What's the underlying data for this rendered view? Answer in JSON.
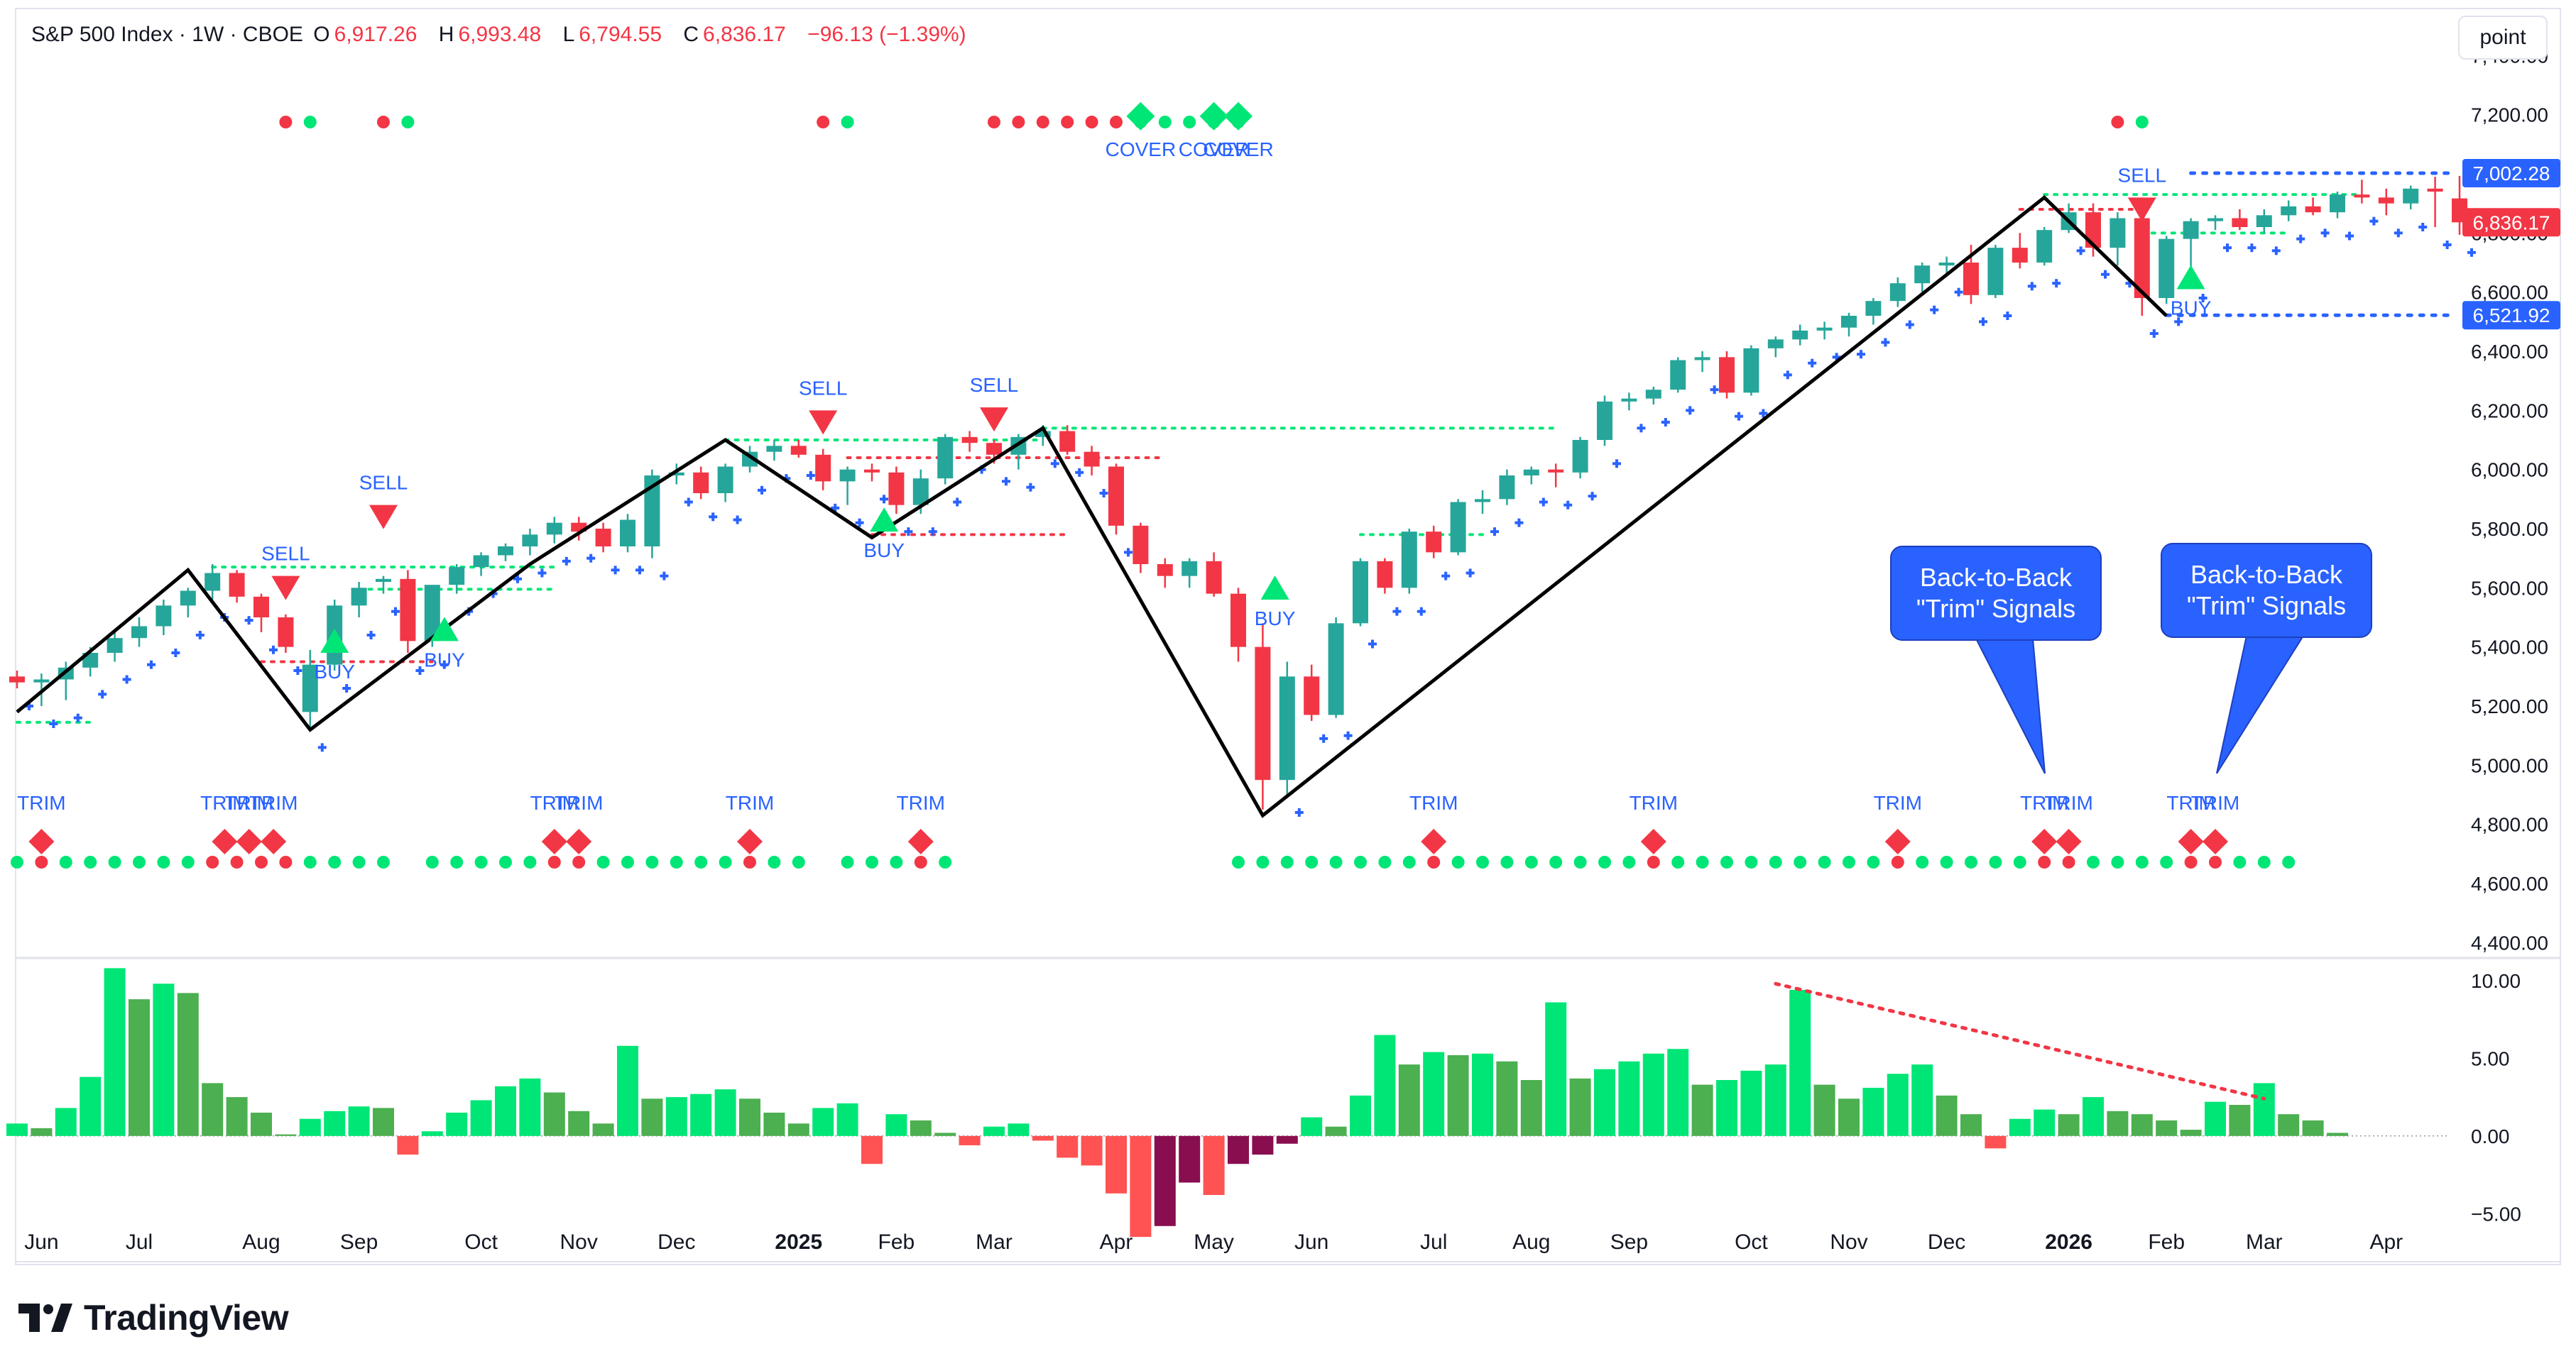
{
  "header": {
    "symbol": "S&P 500 Index · 1W · CBOE",
    "open_label": "O",
    "open": "6,917.26",
    "high_label": "H",
    "high": "6,993.48",
    "low_label": "L",
    "low": "6,794.55",
    "close_label": "C",
    "close": "6,836.17",
    "change": "−96.13 (−1.39%)"
  },
  "unit_button": "point",
  "brand": "TradingView",
  "colors": {
    "up": "#26a69a",
    "down": "#f23645",
    "hist_up_strong": "#00e676",
    "hist_up_weak": "#4caf50",
    "hist_down_strong": "#ff5252",
    "hist_down_weak": "#880e4f",
    "signal_blue": "#2962ff",
    "green_dot": "#00e676"
  },
  "chart_data": {
    "type": "candlestick",
    "price_axis": {
      "ticks": [
        "4,400.00",
        "4,600.00",
        "4,800.00",
        "5,000.00",
        "5,200.00",
        "5,400.00",
        "5,600.00",
        "5,800.00",
        "6,000.00",
        "6,200.00",
        "6,400.00",
        "6,600.00",
        "6,800.00",
        "7,000.00",
        "7,200.00",
        "7,400.00"
      ],
      "ylim": [
        4360,
        7420
      ]
    },
    "price_labels": [
      {
        "text": "7,002.28",
        "value": 7002.28,
        "color": "#2962ff"
      },
      {
        "text": "6,836.17",
        "value": 6836.17,
        "color": "#f23645"
      },
      {
        "text": "6,521.92",
        "value": 6521.92,
        "color": "#2962ff"
      }
    ],
    "time_axis": [
      {
        "label": "Jun",
        "week": 1
      },
      {
        "label": "Jul",
        "week": 5
      },
      {
        "label": "Aug",
        "week": 10
      },
      {
        "label": "Sep",
        "week": 14
      },
      {
        "label": "Oct",
        "week": 19
      },
      {
        "label": "Nov",
        "week": 23
      },
      {
        "label": "Dec",
        "week": 27
      },
      {
        "label": "2025",
        "week": 32,
        "bold": true
      },
      {
        "label": "Feb",
        "week": 36
      },
      {
        "label": "Mar",
        "week": 40
      },
      {
        "label": "Apr",
        "week": 45
      },
      {
        "label": "May",
        "week": 49
      },
      {
        "label": "Jun",
        "week": 53
      },
      {
        "label": "Jul",
        "week": 58
      },
      {
        "label": "Aug",
        "week": 62
      },
      {
        "label": "Sep",
        "week": 66
      },
      {
        "label": "Oct",
        "week": 71
      },
      {
        "label": "Nov",
        "week": 75
      },
      {
        "label": "Dec",
        "week": 79
      },
      {
        "label": "2026",
        "week": 84,
        "bold": true
      },
      {
        "label": "Feb",
        "week": 88
      },
      {
        "label": "Mar",
        "week": 92
      },
      {
        "label": "Apr",
        "week": 97
      }
    ],
    "candles": [
      [
        5300,
        5320,
        5260,
        5280
      ],
      [
        5280,
        5310,
        5200,
        5290
      ],
      [
        5290,
        5350,
        5220,
        5330
      ],
      [
        5330,
        5400,
        5300,
        5380
      ],
      [
        5380,
        5460,
        5350,
        5430
      ],
      [
        5430,
        5500,
        5400,
        5470
      ],
      [
        5470,
        5560,
        5440,
        5540
      ],
      [
        5540,
        5600,
        5500,
        5590
      ],
      [
        5590,
        5680,
        5560,
        5650
      ],
      [
        5650,
        5660,
        5550,
        5570
      ],
      [
        5570,
        5580,
        5450,
        5500
      ],
      [
        5500,
        5510,
        5380,
        5400
      ],
      [
        5180,
        5390,
        5120,
        5340
      ],
      [
        5340,
        5560,
        5320,
        5540
      ],
      [
        5540,
        5620,
        5500,
        5600
      ],
      [
        5620,
        5640,
        5580,
        5630
      ],
      [
        5630,
        5660,
        5380,
        5420
      ],
      [
        5420,
        5600,
        5400,
        5610
      ],
      [
        5610,
        5680,
        5580,
        5670
      ],
      [
        5670,
        5720,
        5640,
        5710
      ],
      [
        5710,
        5750,
        5690,
        5740
      ],
      [
        5740,
        5800,
        5710,
        5780
      ],
      [
        5780,
        5840,
        5750,
        5820
      ],
      [
        5820,
        5840,
        5760,
        5790
      ],
      [
        5800,
        5820,
        5720,
        5740
      ],
      [
        5740,
        5850,
        5720,
        5830
      ],
      [
        5740,
        6000,
        5700,
        5980
      ],
      [
        5980,
        6020,
        5950,
        5990
      ],
      [
        5990,
        6010,
        5900,
        5920
      ],
      [
        5920,
        6020,
        5890,
        6010
      ],
      [
        6010,
        6080,
        5990,
        6060
      ],
      [
        6060,
        6100,
        6030,
        6080
      ],
      [
        6080,
        6100,
        6040,
        6050
      ],
      [
        6050,
        6070,
        5930,
        5960
      ],
      [
        5960,
        6010,
        5880,
        6000
      ],
      [
        6000,
        6020,
        5960,
        5990
      ],
      [
        5990,
        6010,
        5850,
        5880
      ],
      [
        5880,
        6000,
        5850,
        5970
      ],
      [
        5970,
        6120,
        5950,
        6110
      ],
      [
        6110,
        6130,
        6060,
        6090
      ],
      [
        6090,
        6100,
        6020,
        6050
      ],
      [
        6050,
        6120,
        6000,
        6110
      ],
      [
        6110,
        6150,
        6080,
        6130
      ],
      [
        6130,
        6150,
        6050,
        6060
      ],
      [
        6060,
        6080,
        5980,
        6010
      ],
      [
        6010,
        6020,
        5780,
        5810
      ],
      [
        5810,
        5820,
        5650,
        5680
      ],
      [
        5680,
        5700,
        5600,
        5640
      ],
      [
        5640,
        5700,
        5600,
        5690
      ],
      [
        5690,
        5720,
        5570,
        5580
      ],
      [
        5580,
        5600,
        5350,
        5400
      ],
      [
        5400,
        5480,
        4850,
        4950
      ],
      [
        4950,
        5350,
        4900,
        5300
      ],
      [
        5300,
        5340,
        5150,
        5170
      ],
      [
        5170,
        5500,
        5160,
        5480
      ],
      [
        5480,
        5700,
        5470,
        5690
      ],
      [
        5690,
        5700,
        5580,
        5600
      ],
      [
        5600,
        5800,
        5580,
        5790
      ],
      [
        5790,
        5810,
        5700,
        5720
      ],
      [
        5720,
        5900,
        5710,
        5890
      ],
      [
        5890,
        5930,
        5850,
        5900
      ],
      [
        5900,
        6000,
        5880,
        5980
      ],
      [
        5980,
        6010,
        5950,
        6000
      ],
      [
        6000,
        6020,
        5940,
        5990
      ],
      [
        5990,
        6110,
        5970,
        6100
      ],
      [
        6100,
        6250,
        6080,
        6230
      ],
      [
        6230,
        6260,
        6200,
        6240
      ],
      [
        6240,
        6280,
        6220,
        6270
      ],
      [
        6270,
        6380,
        6260,
        6370
      ],
      [
        6370,
        6400,
        6330,
        6380
      ],
      [
        6380,
        6400,
        6240,
        6260
      ],
      [
        6260,
        6420,
        6250,
        6410
      ],
      [
        6410,
        6450,
        6380,
        6440
      ],
      [
        6440,
        6490,
        6420,
        6470
      ],
      [
        6470,
        6500,
        6440,
        6480
      ],
      [
        6480,
        6530,
        6450,
        6520
      ],
      [
        6520,
        6580,
        6490,
        6570
      ],
      [
        6570,
        6650,
        6550,
        6630
      ],
      [
        6630,
        6700,
        6600,
        6690
      ],
      [
        6690,
        6720,
        6660,
        6700
      ],
      [
        6700,
        6760,
        6560,
        6590
      ],
      [
        6590,
        6760,
        6580,
        6750
      ],
      [
        6750,
        6800,
        6680,
        6700
      ],
      [
        6700,
        6820,
        6690,
        6810
      ],
      [
        6810,
        6900,
        6800,
        6870
      ],
      [
        6870,
        6900,
        6720,
        6750
      ],
      [
        6750,
        6870,
        6690,
        6850
      ],
      [
        6850,
        6870,
        6520,
        6580
      ],
      [
        6580,
        6790,
        6560,
        6780
      ],
      [
        6780,
        6850,
        6640,
        6840
      ],
      [
        6840,
        6860,
        6810,
        6850
      ],
      [
        6850,
        6880,
        6810,
        6820
      ],
      [
        6820,
        6880,
        6800,
        6860
      ],
      [
        6860,
        6910,
        6840,
        6890
      ],
      [
        6890,
        6920,
        6860,
        6870
      ],
      [
        6870,
        6940,
        6850,
        6930
      ],
      [
        6930,
        6980,
        6900,
        6920
      ],
      [
        6920,
        6950,
        6860,
        6900
      ],
      [
        6900,
        6960,
        6880,
        6950
      ],
      [
        6950,
        6990,
        6820,
        6940
      ],
      [
        6917,
        6993,
        6794,
        6836
      ]
    ],
    "zigzag": [
      [
        0,
        5180
      ],
      [
        7,
        5660
      ],
      [
        12,
        5120
      ],
      [
        21,
        5680
      ],
      [
        29,
        6100
      ],
      [
        35,
        5770
      ],
      [
        42,
        6140
      ],
      [
        51,
        4830
      ],
      [
        83,
        6920
      ],
      [
        88,
        6520
      ]
    ],
    "signal_labels": [
      {
        "text": "SELL",
        "week": 15,
        "value": 5880,
        "kind": "sell"
      },
      {
        "text": "SELL",
        "week": 11,
        "value": 5640,
        "kind": "sell"
      },
      {
        "text": "BUY",
        "week": 13,
        "value": 5380,
        "kind": "buy"
      },
      {
        "text": "BUY",
        "week": 17.5,
        "value": 5420,
        "kind": "buy"
      },
      {
        "text": "SELL",
        "week": 33,
        "value": 6200,
        "kind": "sell"
      },
      {
        "text": "BUY",
        "week": 35.5,
        "value": 5790,
        "kind": "buy"
      },
      {
        "text": "SELL",
        "week": 40,
        "value": 6210,
        "kind": "sell"
      },
      {
        "text": "BUY",
        "week": 51.5,
        "value": 5560,
        "kind": "buy"
      },
      {
        "text": "SELL",
        "week": 87,
        "value": 6920,
        "kind": "sell"
      },
      {
        "text": "BUY",
        "week": 89,
        "value": 6610,
        "kind": "buy"
      },
      {
        "text": "COVER",
        "week": 46,
        "value": 7195,
        "kind": "cover"
      },
      {
        "text": "COVER",
        "week": 49,
        "value": 7195,
        "kind": "cover"
      },
      {
        "text": "COVER",
        "week": 50,
        "value": 7195,
        "kind": "cover"
      }
    ],
    "trim_labels": [
      {
        "text": "TRIM",
        "week": 1
      },
      {
        "text": "TRIM",
        "week": 8.5
      },
      {
        "text": "TRIM",
        "week": 9.5
      },
      {
        "text": "TRIM",
        "week": 10.5
      },
      {
        "text": "TRIM",
        "week": 22
      },
      {
        "text": "TRIM",
        "week": 23
      },
      {
        "text": "TRIM",
        "week": 30
      },
      {
        "text": "TRIM",
        "week": 37
      },
      {
        "text": "TRIM",
        "week": 58
      },
      {
        "text": "TRIM",
        "week": 67
      },
      {
        "text": "TRIM",
        "week": 77
      },
      {
        "text": "TRIM",
        "week": 83
      },
      {
        "text": "TRIM",
        "week": 84
      },
      {
        "text": "TRIM",
        "week": 89
      },
      {
        "text": "TRIM",
        "week": 90
      }
    ],
    "callouts": [
      {
        "text": "Back-to-Back \"Trim\" Signals",
        "line1": "Back-to-Back",
        "line2": "\"Trim\" Signals"
      },
      {
        "text": "Back-to-Back \"Trim\" Signals",
        "line1": "Back-to-Back",
        "line2": "\"Trim\" Signals"
      }
    ],
    "histogram": {
      "axis_ticks": [
        "10.00",
        "5.00",
        "0.00",
        "−5.00"
      ],
      "ylim": [
        -7.5,
        11
      ],
      "values": [
        0.8,
        0.5,
        1.8,
        3.8,
        10.8,
        8.8,
        9.8,
        9.2,
        3.4,
        2.5,
        1.5,
        0.1,
        1.1,
        1.6,
        1.9,
        1.8,
        -1.2,
        0.3,
        1.5,
        2.3,
        3.2,
        3.7,
        2.8,
        1.6,
        0.8,
        5.8,
        2.4,
        2.5,
        2.7,
        3.0,
        2.4,
        1.5,
        0.8,
        1.8,
        2.1,
        -1.8,
        1.4,
        1.0,
        0.2,
        -0.6,
        0.6,
        0.8,
        -0.3,
        -1.4,
        -1.9,
        -3.7,
        -6.5,
        -5.8,
        -3.0,
        -3.8,
        -1.8,
        -1.2,
        -0.5,
        1.2,
        0.6,
        2.6,
        6.5,
        4.6,
        5.4,
        5.2,
        5.3,
        4.8,
        3.6,
        8.6,
        3.7,
        4.3,
        4.8,
        5.3,
        5.6,
        3.3,
        3.6,
        4.2,
        4.6,
        9.4,
        3.3,
        2.4,
        3.1,
        4.0,
        4.6,
        2.6,
        1.4,
        -0.8,
        1.1,
        1.7,
        1.4,
        2.5,
        1.6,
        1.4,
        1.0,
        0.4,
        2.2,
        2.0,
        3.4,
        1.4,
        1.0,
        0.2
      ],
      "trendline": [
        [
          72,
          9.8
        ],
        [
          92,
          2.4
        ]
      ]
    }
  }
}
